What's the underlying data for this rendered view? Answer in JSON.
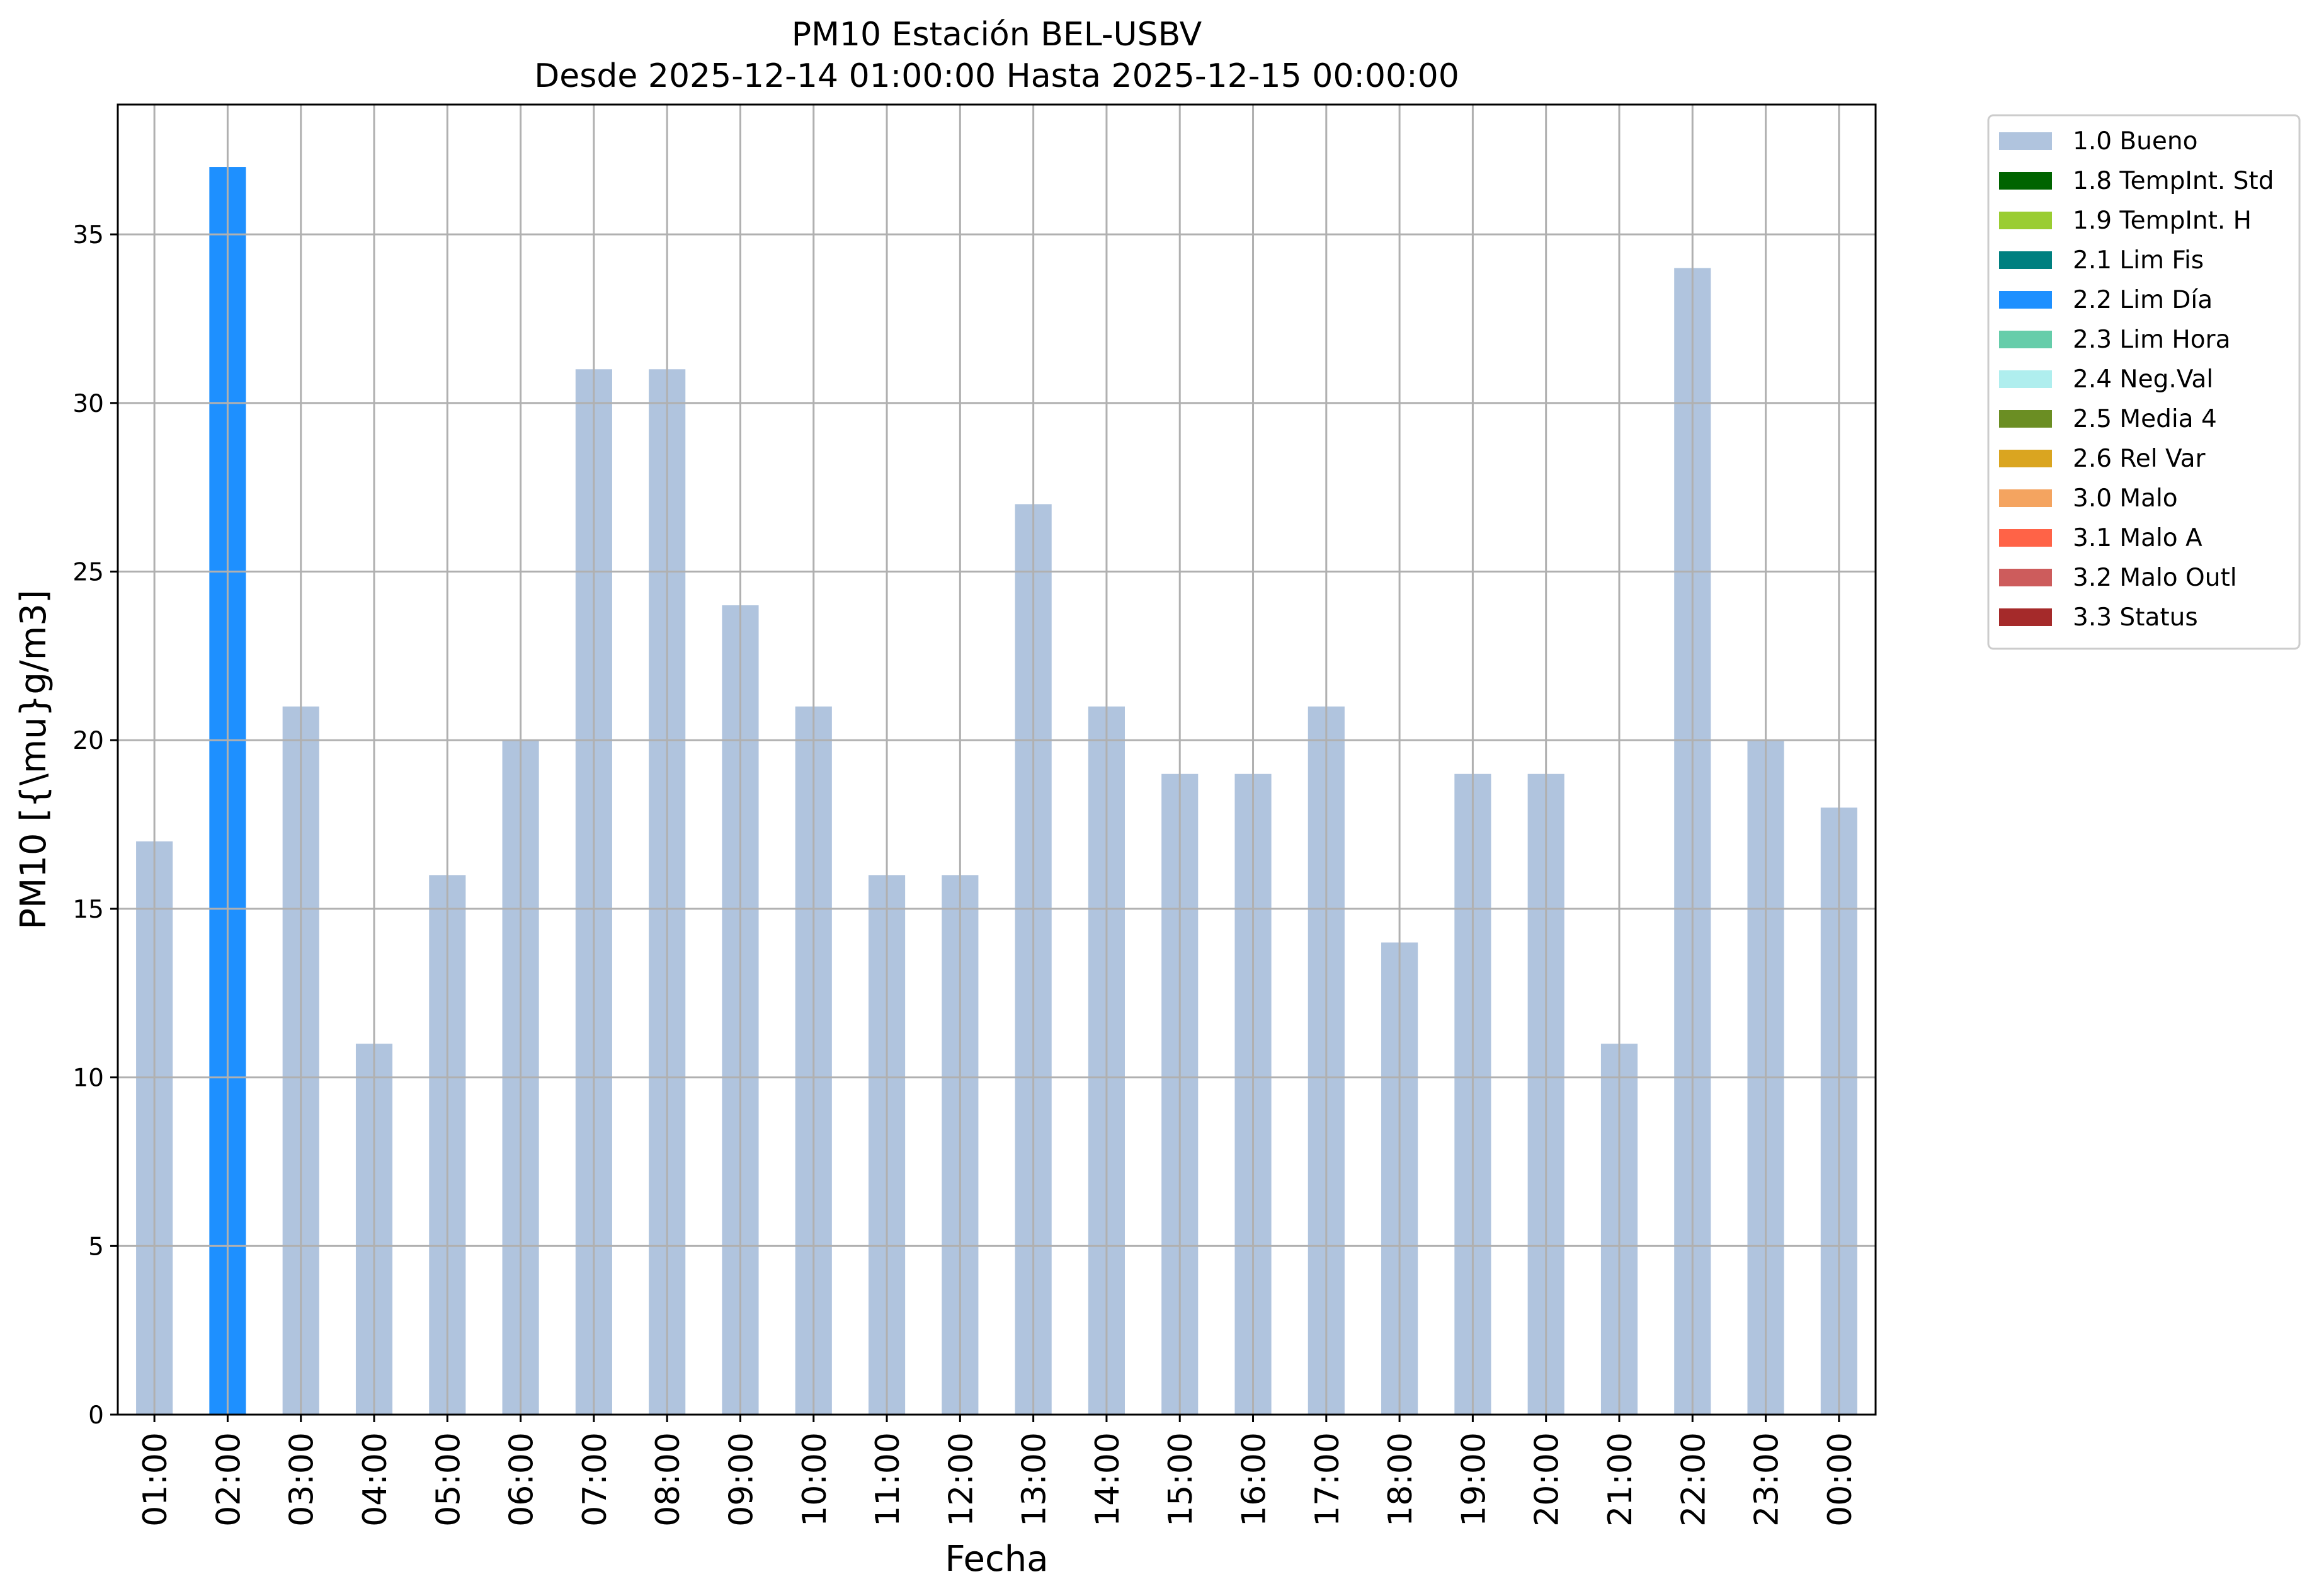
{
  "chart_data": {
    "type": "bar",
    "title": "PM10 Estación BEL-USBV",
    "subtitle": "Desde 2025-12-14 01:00:00 Hasta 2025-12-15 00:00:00",
    "xlabel": "Fecha",
    "ylabel": "PM10 [{\\mu}g/m3]",
    "ylim": [
      0,
      38.85
    ],
    "yticks": [
      0,
      5,
      10,
      15,
      20,
      25,
      30,
      35
    ],
    "grid": true,
    "legend_position": "outside top-right",
    "categories": [
      "01:00",
      "02:00",
      "03:00",
      "04:00",
      "05:00",
      "06:00",
      "07:00",
      "08:00",
      "09:00",
      "10:00",
      "11:00",
      "12:00",
      "13:00",
      "14:00",
      "15:00",
      "16:00",
      "17:00",
      "18:00",
      "19:00",
      "20:00",
      "21:00",
      "22:00",
      "23:00",
      "00:00"
    ],
    "values": [
      17,
      37,
      21,
      11,
      16,
      20,
      31,
      31,
      24,
      21,
      16,
      16,
      27,
      21,
      19,
      19,
      21,
      14,
      19,
      19,
      11,
      34,
      20,
      18
    ],
    "flags": [
      "1.0 Bueno",
      "2.2 Lim Día",
      "1.0 Bueno",
      "1.0 Bueno",
      "1.0 Bueno",
      "1.0 Bueno",
      "1.0 Bueno",
      "1.0 Bueno",
      "1.0 Bueno",
      "1.0 Bueno",
      "1.0 Bueno",
      "1.0 Bueno",
      "1.0 Bueno",
      "1.0 Bueno",
      "1.0 Bueno",
      "1.0 Bueno",
      "1.0 Bueno",
      "1.0 Bueno",
      "1.0 Bueno",
      "1.0 Bueno",
      "1.0 Bueno",
      "1.0 Bueno",
      "1.0 Bueno",
      "1.0 Bueno"
    ],
    "legend": [
      {
        "label": "1.0 Bueno",
        "color": "#b0c4de"
      },
      {
        "label": "1.8 TempInt. Std",
        "color": "#006400"
      },
      {
        "label": "1.9 TempInt. H",
        "color": "#9acd32"
      },
      {
        "label": "2.1 Lim Fis",
        "color": "#008080"
      },
      {
        "label": "2.2 Lim Día",
        "color": "#1e90ff"
      },
      {
        "label": "2.3 Lim Hora",
        "color": "#66cdaa"
      },
      {
        "label": "2.4 Neg.Val",
        "color": "#afeeee"
      },
      {
        "label": "2.5 Media 4",
        "color": "#6b8e23"
      },
      {
        "label": "2.6 Rel Var",
        "color": "#daa520"
      },
      {
        "label": "3.0 Malo",
        "color": "#f4a460"
      },
      {
        "label": "3.1 Malo A",
        "color": "#ff6347"
      },
      {
        "label": "3.2 Malo Outl",
        "color": "#cd5c5c"
      },
      {
        "label": "3.3 Status",
        "color": "#a52a2a"
      }
    ]
  }
}
